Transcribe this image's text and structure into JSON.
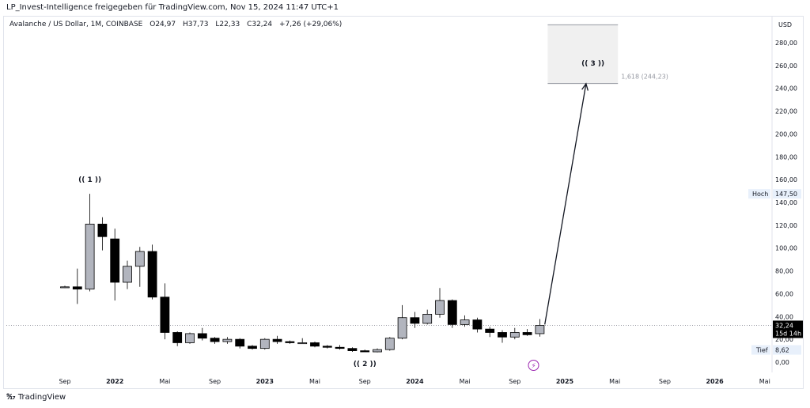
{
  "header": {
    "title": "LP_Invest-Intelligence freigegeben für TradingView.com, Nov 15, 2024 11:47 UTC+1"
  },
  "symbol": {
    "name": "Avalanche / US Dollar, 1M, COINBASE",
    "open": "O24,97",
    "high": "H37,73",
    "low": "L22,33",
    "close": "C32,24",
    "change": "+7,26 (+29,06%)"
  },
  "price_scale": {
    "currency": "USD",
    "last_price": "32,24",
    "countdown": "15d 14h",
    "high_label": "Hoch",
    "high_value": "147,50",
    "low_label": "Tief",
    "low_value": "8,62"
  },
  "fib": {
    "label": "1,618 (244,23)"
  },
  "waves": [
    "(( 1 ))",
    "(( 2 ))",
    "(( 3 ))"
  ],
  "footer": {
    "brand": "TradingView"
  },
  "colors": {
    "up_fill": "#b2b5be",
    "down_fill": "#000000",
    "box_fill": "#f0f0f0",
    "box_border": "#9598a1",
    "label_bg": "#e8f0fb",
    "price_bg": "#000000",
    "watermark": "#9c27b0"
  },
  "chart_data": {
    "type": "candlestick",
    "ylim": [
      0,
      300
    ],
    "y_ticks": [
      "0,00",
      "20,00",
      "40,00",
      "60,00",
      "80,00",
      "100,00",
      "120,00",
      "140,00",
      "160,00",
      "180,00",
      "200,00",
      "220,00",
      "240,00",
      "260,00",
      "280,00"
    ],
    "x_ticks": [
      {
        "label": "Sep",
        "i": 0
      },
      {
        "label": "2022",
        "i": 4
      },
      {
        "label": "Mai",
        "i": 8
      },
      {
        "label": "Sep",
        "i": 12
      },
      {
        "label": "2023",
        "i": 16
      },
      {
        "label": "Mai",
        "i": 20
      },
      {
        "label": "Sep",
        "i": 24
      },
      {
        "label": "2024",
        "i": 28
      },
      {
        "label": "Mai",
        "i": 32
      },
      {
        "label": "Sep",
        "i": 36
      },
      {
        "label": "2025",
        "i": 40
      },
      {
        "label": "Mai",
        "i": 44
      },
      {
        "label": "Sep",
        "i": 48
      },
      {
        "label": "2026",
        "i": 52
      },
      {
        "label": "Mai",
        "i": 56
      }
    ],
    "candles": [
      {
        "o": 66,
        "h": 67,
        "l": 65,
        "c": 66
      },
      {
        "o": 66,
        "h": 82,
        "l": 51,
        "c": 64
      },
      {
        "o": 64,
        "h": 147.5,
        "l": 62,
        "c": 121
      },
      {
        "o": 121,
        "h": 127,
        "l": 98,
        "c": 110
      },
      {
        "o": 108,
        "h": 117,
        "l": 54,
        "c": 70
      },
      {
        "o": 70,
        "h": 89,
        "l": 64,
        "c": 84
      },
      {
        "o": 84,
        "h": 101,
        "l": 66,
        "c": 97
      },
      {
        "o": 97,
        "h": 103,
        "l": 55,
        "c": 57
      },
      {
        "o": 57,
        "h": 69,
        "l": 20,
        "c": 26
      },
      {
        "o": 26,
        "h": 27,
        "l": 14,
        "c": 17
      },
      {
        "o": 17,
        "h": 26,
        "l": 16,
        "c": 25
      },
      {
        "o": 25,
        "h": 30,
        "l": 19,
        "c": 21
      },
      {
        "o": 21,
        "h": 22,
        "l": 16,
        "c": 18
      },
      {
        "o": 18,
        "h": 22,
        "l": 16,
        "c": 20
      },
      {
        "o": 20,
        "h": 21,
        "l": 12,
        "c": 14
      },
      {
        "o": 14,
        "h": 15,
        "l": 11,
        "c": 12
      },
      {
        "o": 12,
        "h": 21,
        "l": 11,
        "c": 20
      },
      {
        "o": 20,
        "h": 23,
        "l": 16,
        "c": 18
      },
      {
        "o": 18,
        "h": 19,
        "l": 16,
        "c": 17
      },
      {
        "o": 17,
        "h": 21,
        "l": 16,
        "c": 17
      },
      {
        "o": 17,
        "h": 18,
        "l": 13,
        "c": 14
      },
      {
        "o": 14,
        "h": 15,
        "l": 12,
        "c": 13
      },
      {
        "o": 13,
        "h": 15,
        "l": 11,
        "c": 12
      },
      {
        "o": 12,
        "h": 13,
        "l": 9,
        "c": 10
      },
      {
        "o": 10,
        "h": 11,
        "l": 9,
        "c": 9
      },
      {
        "o": 9,
        "h": 12,
        "l": 8.6,
        "c": 11
      },
      {
        "o": 11,
        "h": 22,
        "l": 10,
        "c": 21
      },
      {
        "o": 21,
        "h": 50,
        "l": 20,
        "c": 39
      },
      {
        "o": 39,
        "h": 44,
        "l": 30,
        "c": 34
      },
      {
        "o": 34,
        "h": 46,
        "l": 33,
        "c": 42
      },
      {
        "o": 42,
        "h": 65,
        "l": 39,
        "c": 54
      },
      {
        "o": 54,
        "h": 55,
        "l": 30,
        "c": 33
      },
      {
        "o": 33,
        "h": 41,
        "l": 31,
        "c": 37
      },
      {
        "o": 37,
        "h": 39,
        "l": 26,
        "c": 29
      },
      {
        "o": 29,
        "h": 31,
        "l": 22,
        "c": 26
      },
      {
        "o": 26,
        "h": 28,
        "l": 17,
        "c": 22
      },
      {
        "o": 22,
        "h": 30,
        "l": 20,
        "c": 26
      },
      {
        "o": 26,
        "h": 29,
        "l": 23,
        "c": 24
      },
      {
        "o": 24.97,
        "h": 37.73,
        "l": 22.33,
        "c": 32.24
      }
    ],
    "last_price": 32.24,
    "target_zone": {
      "from_i": 38,
      "to_i": 44,
      "low": 244.23,
      "high": 295
    },
    "arrow": {
      "from_i": 38.4,
      "from_y": 33,
      "to_i": 41.7,
      "to_y": 244
    },
    "annotations": [
      {
        "text": "(( 1 ))",
        "i": 2,
        "y": 158
      },
      {
        "text": "(( 2 ))",
        "i": 24,
        "y": -1
      },
      {
        "text": "(( 3 ))",
        "i": 42,
        "y": 260
      }
    ]
  }
}
